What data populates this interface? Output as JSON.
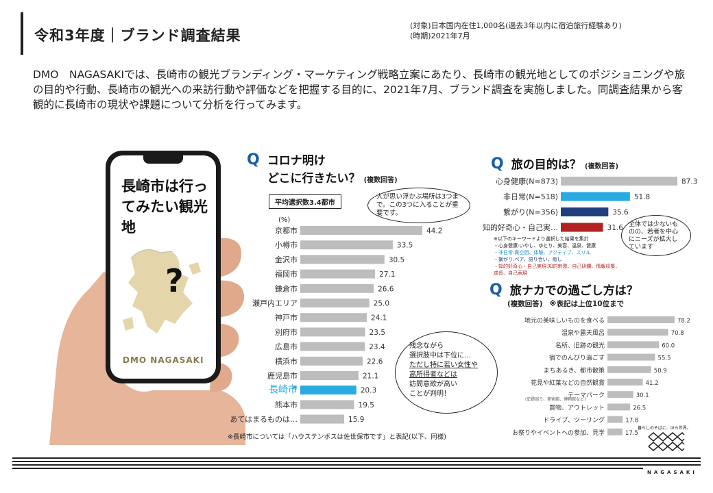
{
  "header": {
    "title": "令和3年度｜ブランド調査結果",
    "meta_line1": "(対象)日本国内在住1,000名(過去3年以内に宿泊旅行経験あり)",
    "meta_line2": "(時期)2021年7月"
  },
  "intro": "DMO　NAGASAKIでは、長崎市の観光ブランディング・マーケティング戦略立案にあたり、長崎市の観光地としてのポジショニングや旅の目的や行動、長崎市の観光への来訪行動や評価などを把握する目的に、2021年7月、ブランド調査を実施しました。同調査結果から客観的に長崎市の現状や課題について分析を行ってみます。",
  "phone": {
    "text": "長崎市は行ってみたい観光地",
    "question_mark": "?",
    "logo": "DMO NAGASAKI"
  },
  "q1": {
    "q": "Q",
    "title_line1": "コロナ明け",
    "title_line2": "どこに行きたい？",
    "note": "(複数回答)",
    "avg_box": "平均選択数3.4都市",
    "bubble": "人が思い浮かぶ場所は3つまで。この3つに入ることが重要です。",
    "unit": "(%)",
    "asterisk": "※",
    "footnote": "※長崎市については「ハウステンボスは佐世保市です」と表記(以下、同様)",
    "bubble2_line1": "残念ながら",
    "bubble2_line2": "選択肢中は下位に…",
    "bubble2_line3": "ただし特に若い女性や",
    "bubble2_line4": "高所得者などは",
    "bubble2_line5": "訪問意欲が高い",
    "bubble2_line6": "ことが判明！"
  },
  "q2": {
    "q": "Q",
    "title": "旅の目的は？",
    "note": "(複数回答)",
    "bubble": "全体では少ないものの、若者を中心にニーズが拡大しています",
    "legend_title": "※以下のキーワードより選択した結果を集計",
    "legend": [
      "・心身健康:いやし、ゆとり、美容、温泉、健康",
      "・非日常:異空間、体験、アクティブ、スリル",
      "・繋がり:ペア、語り合い、癒し",
      "・知的好奇心・自己実現:知的刺激、自己研鑽、情報収集、成長、自己表現"
    ]
  },
  "q3": {
    "q": "Q",
    "title": "旅ナカでの過ごし方は？",
    "note": "(複数回答)",
    "note2": "※表記は上位10位まで",
    "theme_sub": "(史跡巡り、美術館、博物館など)"
  },
  "footer": {
    "logo_tagline": "暮らしのそばに、ほら世界。",
    "logo_word": "NAGASAKI"
  },
  "chart_data": [
    {
      "type": "bar",
      "title": "コロナ明けどこに行きたい？(複数回答)",
      "ylabel": "(%)",
      "categories": [
        "京都市",
        "小樽市",
        "金沢市",
        "福岡市",
        "鎌倉市",
        "瀬戸内エリア",
        "神戸市",
        "別府市",
        "広島市",
        "横浜市",
        "鹿児島市",
        "長崎市",
        "熊本市",
        "あてはまるものは…"
      ],
      "values": [
        44.2,
        33.5,
        30.5,
        27.1,
        26.6,
        25.0,
        24.1,
        23.5,
        23.4,
        22.6,
        21.1,
        20.3,
        19.5,
        15.9
      ],
      "highlight_index": 11,
      "colors": {
        "default": "#bdbdbd",
        "highlight": "#29abe2"
      }
    },
    {
      "type": "bar",
      "title": "旅の目的は？(複数回答)",
      "categories": [
        "心身健康(N=873)",
        "非日常(N=518)",
        "繋がり(N=356)",
        "知的好奇心・自己実…"
      ],
      "values": [
        87.3,
        51.8,
        35.6,
        31.6
      ],
      "colors": [
        "#bdbdbd",
        "#29abe2",
        "#1f3f7f",
        "#b22222"
      ]
    },
    {
      "type": "bar",
      "title": "旅ナカでの過ごし方は？(複数回答)",
      "categories": [
        "地元の美味しいものを食べる",
        "温泉や露天風呂",
        "名所、旧跡の観光",
        "宿でのんびり過ごす",
        "まちあるき、都市散策",
        "花見や紅葉などの自然観賞",
        "テーマパーク",
        "買物、アウトレット",
        "ドライブ、ツーリング",
        "お祭りやイベントへの参加、見学"
      ],
      "values": [
        78.2,
        70.8,
        60.0,
        55.5,
        50.9,
        41.2,
        30.1,
        26.5,
        17.8,
        17.5
      ],
      "colors": {
        "default": "#bdbdbd"
      }
    }
  ]
}
